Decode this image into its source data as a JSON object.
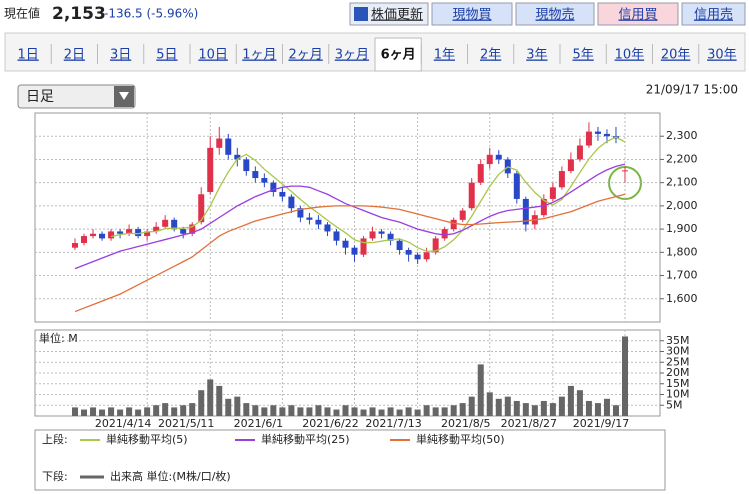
{
  "header": {
    "current_label": "現在値",
    "price": "2,153",
    "change": "-136.5 (-5.96%)",
    "buttons": [
      "株価更新",
      "現物買",
      "現物売",
      "信用買",
      "信用売"
    ]
  },
  "tabs": {
    "items": [
      "1日",
      "2日",
      "3日",
      "5日",
      "10日",
      "1ヶ月",
      "2ヶ月",
      "3ヶ月",
      "6ヶ月",
      "1年",
      "2年",
      "3年",
      "5年",
      "10年",
      "20年",
      "30年"
    ],
    "selected_index": 8
  },
  "dropdown": "日足",
  "timestamp": "21/09/17 15:00",
  "chart_data": [
    {
      "type": "candlestick",
      "legend_label": "上段:",
      "up_color": "#e0304a",
      "down_color": "#2848c8",
      "grid": true,
      "ylim": [
        1500,
        2400
      ],
      "yticks": [
        {
          "value": 1600,
          "label": "1,600"
        },
        {
          "value": 1700,
          "label": "1,700"
        },
        {
          "value": 1800,
          "label": "1,800"
        },
        {
          "value": 1900,
          "label": "1,900"
        },
        {
          "value": 2000,
          "label": "2,000"
        },
        {
          "value": 2100,
          "label": "2,100"
        },
        {
          "value": 2200,
          "label": "2,200"
        },
        {
          "value": 2300,
          "label": "2,300"
        }
      ],
      "open": [
        1820,
        1840,
        1870,
        1880,
        1860,
        1890,
        1880,
        1900,
        1870,
        1890,
        1910,
        1940,
        1900,
        1880,
        1930,
        2060,
        2250,
        2290,
        2220,
        2200,
        2150,
        2120,
        2100,
        2060,
        2040,
        1990,
        1950,
        1940,
        1920,
        1890,
        1850,
        1820,
        1790,
        1860,
        1890,
        1880,
        1850,
        1810,
        1790,
        1770,
        1800,
        1860,
        1900,
        1940,
        1990,
        2100,
        2180,
        2220,
        2200,
        2140,
        2030,
        1920,
        1960,
        2030,
        2080,
        2150,
        2200,
        2260,
        2320,
        2310,
        2300,
        2150
      ],
      "high": [
        1860,
        1880,
        1900,
        1890,
        1900,
        1900,
        1920,
        1910,
        1900,
        1930,
        1960,
        1950,
        1910,
        1930,
        2080,
        2300,
        2340,
        2310,
        2250,
        2210,
        2170,
        2140,
        2110,
        2080,
        2050,
        2000,
        1970,
        1960,
        1930,
        1900,
        1860,
        1830,
        1870,
        1910,
        1900,
        1890,
        1860,
        1820,
        1800,
        1820,
        1870,
        1910,
        1950,
        1990,
        2120,
        2200,
        2250,
        2240,
        2210,
        2150,
        2040,
        1980,
        2050,
        2100,
        2170,
        2230,
        2290,
        2360,
        2340,
        2330,
        2340,
        2170
      ],
      "low": [
        1810,
        1830,
        1860,
        1850,
        1850,
        1860,
        1870,
        1860,
        1850,
        1880,
        1900,
        1890,
        1860,
        1870,
        1920,
        2050,
        2220,
        2200,
        2170,
        2130,
        2100,
        2080,
        2040,
        2020,
        1970,
        1930,
        1920,
        1900,
        1870,
        1830,
        1790,
        1760,
        1780,
        1850,
        1860,
        1830,
        1790,
        1760,
        1750,
        1760,
        1790,
        1850,
        1890,
        1930,
        1980,
        2090,
        2160,
        2180,
        2120,
        2010,
        1890,
        1900,
        1950,
        2020,
        2070,
        2140,
        2190,
        2250,
        2280,
        2270,
        2270,
        2100
      ],
      "close": [
        1840,
        1870,
        1880,
        1860,
        1890,
        1880,
        1900,
        1870,
        1890,
        1910,
        1940,
        1900,
        1880,
        1920,
        2050,
        2250,
        2290,
        2220,
        2200,
        2150,
        2120,
        2100,
        2060,
        2040,
        1990,
        1950,
        1940,
        1920,
        1890,
        1850,
        1820,
        1790,
        1860,
        1890,
        1880,
        1850,
        1810,
        1790,
        1770,
        1800,
        1860,
        1900,
        1940,
        1980,
        2100,
        2180,
        2220,
        2200,
        2140,
        2030,
        1920,
        1960,
        2030,
        2080,
        2150,
        2200,
        2260,
        2320,
        2310,
        2300,
        2290,
        2153
      ],
      "series": [
        {
          "name": "単純移動平均(5)",
          "color": "#a8c84a",
          "values": [
            null,
            null,
            null,
            null,
            1868,
            1876,
            1882,
            1880,
            1888,
            1890,
            1902,
            1904,
            1904,
            1910,
            1938,
            2000,
            2078,
            2146,
            2202,
            2222,
            2196,
            2158,
            2126,
            2094,
            2062,
            2028,
            1996,
            1968,
            1938,
            1910,
            1884,
            1854,
            1842,
            1842,
            1848,
            1854,
            1858,
            1844,
            1820,
            1804,
            1806,
            1824,
            1854,
            1896,
            1956,
            2020,
            2084,
            2136,
            2168,
            2154,
            2102,
            2058,
            2024,
            2004,
            2028,
            2084,
            2144,
            2202,
            2248,
            2278,
            2296,
            2275
          ]
        },
        {
          "name": "単純移動平均(25)",
          "color": "#9a3ee0",
          "values": [
            1730,
            1745,
            1760,
            1775,
            1790,
            1805,
            1815,
            1825,
            1835,
            1845,
            1855,
            1865,
            1875,
            1885,
            1900,
            1925,
            1950,
            1975,
            2000,
            2020,
            2040,
            2055,
            2070,
            2080,
            2085,
            2085,
            2080,
            2065,
            2050,
            2030,
            2010,
            1995,
            1980,
            1965,
            1950,
            1940,
            1930,
            1915,
            1900,
            1890,
            1880,
            1875,
            1880,
            1895,
            1915,
            1935,
            1955,
            1970,
            1980,
            1985,
            1990,
            1995,
            2000,
            2015,
            2035,
            2060,
            2085,
            2110,
            2135,
            2155,
            2170,
            2180
          ]
        },
        {
          "name": "単純移動平均(50)",
          "color": "#e2703a",
          "values": [
            1545,
            1560,
            1575,
            1590,
            1605,
            1620,
            1640,
            1660,
            1680,
            1700,
            1720,
            1740,
            1760,
            1780,
            1810,
            1840,
            1870,
            1890,
            1905,
            1920,
            1935,
            1945,
            1955,
            1965,
            1975,
            1985,
            1990,
            1995,
            1998,
            2000,
            2000,
            2000,
            2000,
            1998,
            1995,
            1990,
            1985,
            1975,
            1965,
            1955,
            1945,
            1935,
            1925,
            1920,
            1920,
            1922,
            1925,
            1928,
            1930,
            1932,
            1935,
            1940,
            1945,
            1955,
            1965,
            1975,
            1990,
            2005,
            2020,
            2030,
            2040,
            2050
          ]
        }
      ]
    },
    {
      "type": "bar",
      "title": "単位: M",
      "legend_label": "下段:",
      "grid": true,
      "ylim": [
        0,
        40
      ],
      "yticks": [
        {
          "value": 5,
          "label": "5M"
        },
        {
          "value": 10,
          "label": "10M"
        },
        {
          "value": 15,
          "label": "15M"
        },
        {
          "value": 20,
          "label": "20M"
        },
        {
          "value": 25,
          "label": "25M"
        },
        {
          "value": 30,
          "label": "30M"
        },
        {
          "value": 35,
          "label": "35M"
        }
      ],
      "categories": [
        null,
        null,
        null,
        null,
        null,
        null,
        null,
        null,
        "2021/4/14",
        null,
        null,
        null,
        null,
        null,
        null,
        "2021/5/11",
        null,
        null,
        null,
        null,
        null,
        null,
        null,
        "2021/6/1",
        null,
        null,
        null,
        null,
        null,
        null,
        null,
        "2021/6/22",
        null,
        null,
        null,
        null,
        null,
        null,
        "2021/7/13",
        null,
        null,
        null,
        null,
        null,
        null,
        null,
        "2021/8/5",
        null,
        null,
        null,
        null,
        null,
        null,
        "2021/8/27",
        null,
        null,
        null,
        null,
        null,
        null,
        null,
        "2021/9/17"
      ],
      "series": [
        {
          "name": "出来高 単位:(M株/口/枚)",
          "color": "#666666",
          "values": [
            4,
            3,
            4,
            3,
            4,
            3,
            4,
            3,
            4,
            5,
            6,
            4,
            5,
            6,
            12,
            17,
            14,
            8,
            9,
            6,
            5,
            4,
            5,
            4,
            5,
            4,
            4,
            5,
            4,
            3,
            5,
            4,
            3,
            4,
            3,
            4,
            3,
            4,
            3,
            5,
            4,
            4,
            5,
            6,
            9,
            24,
            11,
            8,
            9,
            7,
            6,
            5,
            7,
            6,
            9,
            14,
            12,
            7,
            6,
            8,
            5,
            37
          ]
        }
      ]
    }
  ]
}
